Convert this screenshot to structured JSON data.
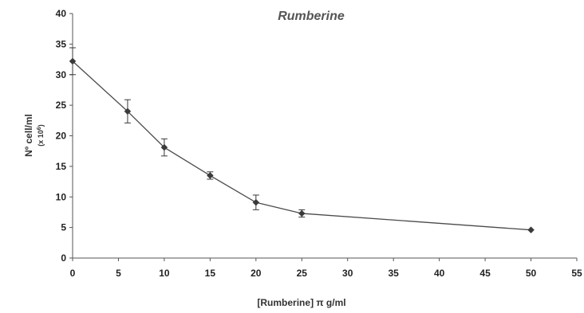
{
  "chart_data": {
    "type": "line",
    "title": "Rumberine",
    "xlabel": "[Rumberine] π g/ml",
    "ylabel": "Nº cell/ml",
    "ylabel_sub": "(x 10",
    "ylabel_sup": "6",
    "ylabel_close": ")",
    "xlim": [
      0,
      55
    ],
    "ylim": [
      0,
      40
    ],
    "x_ticks": [
      0,
      5,
      10,
      15,
      20,
      25,
      30,
      35,
      40,
      45,
      50,
      55
    ],
    "y_ticks": [
      0,
      5,
      10,
      15,
      20,
      25,
      30,
      35,
      40
    ],
    "grid": false,
    "series": [
      {
        "x": [
          0,
          6,
          10,
          15,
          20,
          25,
          50
        ],
        "values": [
          32.2,
          24,
          18.1,
          13.5,
          9.1,
          7.3,
          4.6
        ],
        "error": [
          2.2,
          1.9,
          1.4,
          0.6,
          1.2,
          0.6,
          0
        ]
      }
    ],
    "colors": {
      "line": "#4a4a4a",
      "marker": "#3a3a3a",
      "axis": "#555555",
      "text": "#222222"
    }
  }
}
